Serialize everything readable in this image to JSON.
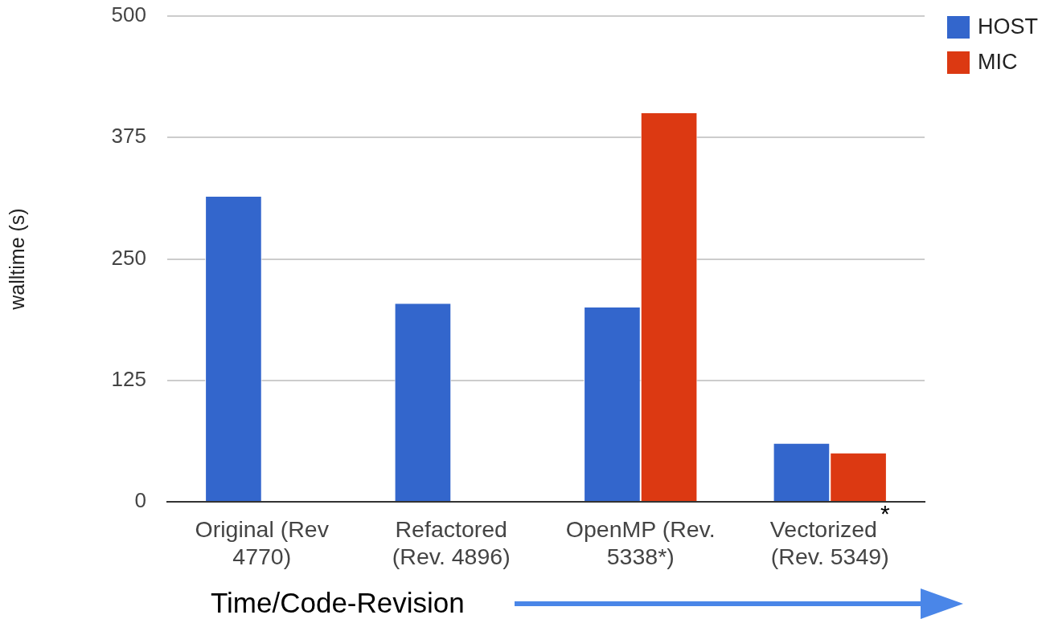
{
  "chart_data": {
    "type": "bar",
    "categories": [
      "Original (Rev 4770)",
      "Refactored (Rev. 4896)",
      "OpenMP (Rev. 5338*)",
      "Vectorized$^{*}$ (Rev. 5349)"
    ],
    "series": [
      {
        "name": "HOST",
        "color": "#3366cc",
        "values": [
          314,
          204,
          200,
          60
        ]
      },
      {
        "name": "MIC",
        "color": "#dc3912",
        "values": [
          null,
          null,
          400,
          50
        ]
      }
    ],
    "xlabel": "Time/Code-Revision",
    "ylabel": "walltime (s)",
    "ylim": [
      0,
      500
    ],
    "yticks": [
      0,
      125,
      250,
      375,
      500
    ],
    "grid": "y",
    "legend": "top right"
  }
}
